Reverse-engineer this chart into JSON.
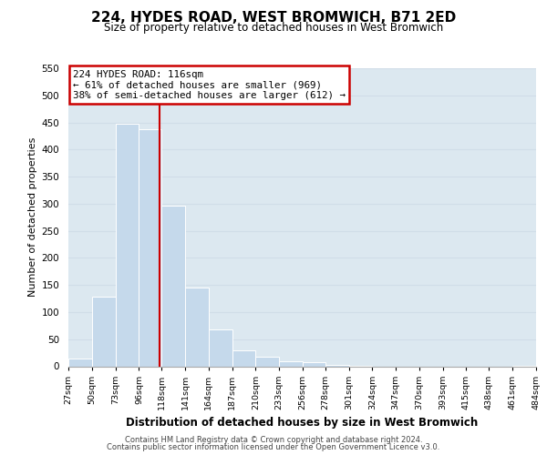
{
  "title": "224, HYDES ROAD, WEST BROMWICH, B71 2ED",
  "subtitle": "Size of property relative to detached houses in West Bromwich",
  "xlabel": "Distribution of detached houses by size in West Bromwich",
  "ylabel": "Number of detached properties",
  "bin_edges": [
    27,
    50,
    73,
    96,
    118,
    141,
    164,
    187,
    210,
    233,
    256,
    278,
    301,
    324,
    347,
    370,
    393,
    415,
    438,
    461,
    484
  ],
  "bar_heights": [
    15,
    128,
    448,
    438,
    297,
    145,
    68,
    30,
    18,
    10,
    7,
    2,
    1,
    0,
    0,
    0,
    0,
    0,
    0,
    1
  ],
  "bar_color": "#c5d9eb",
  "bar_edgecolor": "#ffffff",
  "redline_x": 116,
  "redline_color": "#cc0000",
  "annotation_line1": "224 HYDES ROAD: 116sqm",
  "annotation_line2": "← 61% of detached houses are smaller (969)",
  "annotation_line3": "38% of semi-detached houses are larger (612) →",
  "annotation_box_edgecolor": "#cc0000",
  "annotation_box_facecolor": "#ffffff",
  "ylim": [
    0,
    550
  ],
  "yticks": [
    0,
    50,
    100,
    150,
    200,
    250,
    300,
    350,
    400,
    450,
    500,
    550
  ],
  "footer_line1": "Contains HM Land Registry data © Crown copyright and database right 2024.",
  "footer_line2": "Contains public sector information licensed under the Open Government Licence v3.0.",
  "grid_color": "#d0dde8",
  "background_color": "#dce8f0"
}
